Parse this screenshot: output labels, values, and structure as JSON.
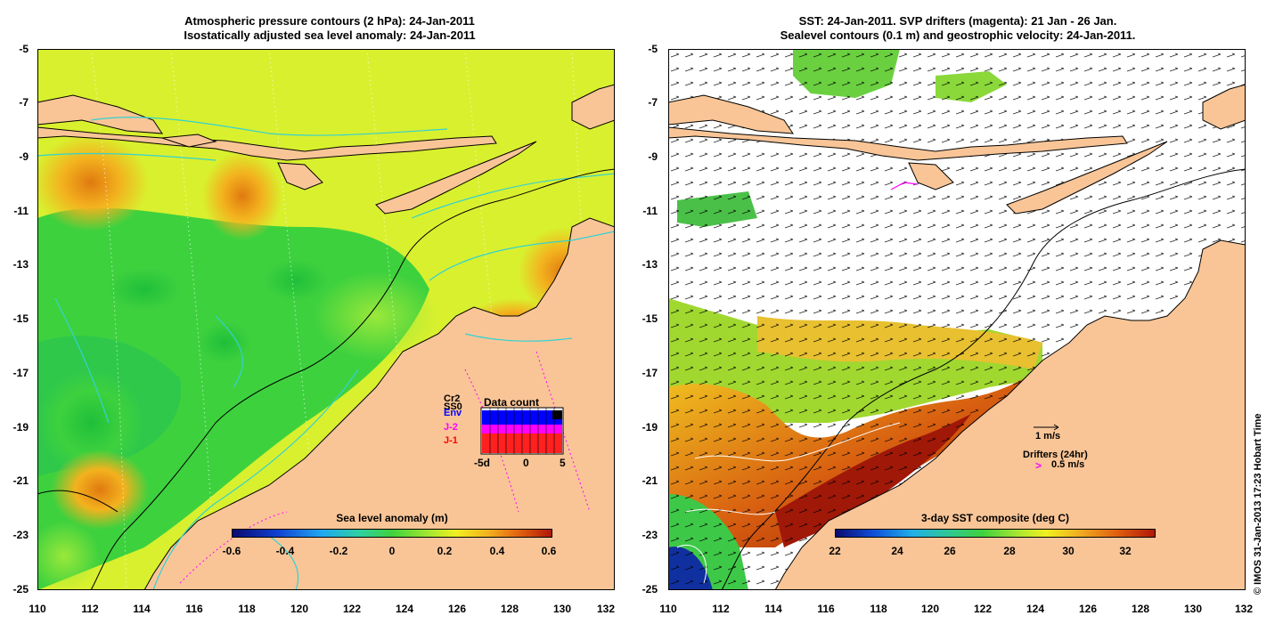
{
  "left_panel": {
    "title_line1": "Atmospheric pressure contours (2 hPa): 24-Jan-2011",
    "title_line2": "Isostatically adjusted sea level anomaly: 24-Jan-2011",
    "colorbar": {
      "title": "Sea level anomaly (m)",
      "ticks": [
        "-0.6",
        "-0.4",
        "-0.2",
        "0",
        "0.2",
        "0.4",
        "0.6"
      ]
    },
    "data_count": {
      "title": "Data count",
      "sources": [
        {
          "label": "Cr2",
          "color": "#000000"
        },
        {
          "label": "SS0",
          "color": "#000000"
        },
        {
          "label": "Env",
          "color": "#0000ff"
        },
        {
          "label": "J-2",
          "color": "#ff00ff"
        },
        {
          "label": "J-1",
          "color": "#ff0000"
        }
      ],
      "xticks": [
        "-5d",
        "0",
        "5"
      ]
    }
  },
  "right_panel": {
    "title_line1": "SST: 24-Jan-2011. SVP drifters (magenta): 21 Jan - 26 Jan.",
    "title_line2": "Sealevel contours (0.1 m) and geostrophic velocity: 24-Jan-2011.",
    "colorbar": {
      "title": "3-day SST composite (deg C)",
      "ticks": [
        "22",
        "24",
        "26",
        "28",
        "30",
        "32"
      ]
    },
    "velocity_scale_label": "1 m/s",
    "drifters_label": "Drifters (24hr)",
    "drifter_scale_symbol": ">",
    "drifter_scale_label": "0.5 m/s"
  },
  "axes": {
    "lat_ticks": [
      "-5",
      "-7",
      "-9",
      "-11",
      "-13",
      "-15",
      "-17",
      "-19",
      "-21",
      "-23",
      "-25"
    ],
    "lon_ticks": [
      "110",
      "112",
      "114",
      "116",
      "118",
      "120",
      "122",
      "124",
      "126",
      "128",
      "130",
      "132"
    ]
  },
  "credit": "© IMOS 31-Jan-2013 17:23 Hobart Time",
  "colors": {
    "land": "#f9c597",
    "coast": "#000000",
    "isobath": "#32d2d2",
    "ocean_green": "#3ed13e",
    "ocean_yellow": "#d9f02e",
    "ocean_orange": "#f3b21e",
    "drifter": "#ff00ff"
  }
}
